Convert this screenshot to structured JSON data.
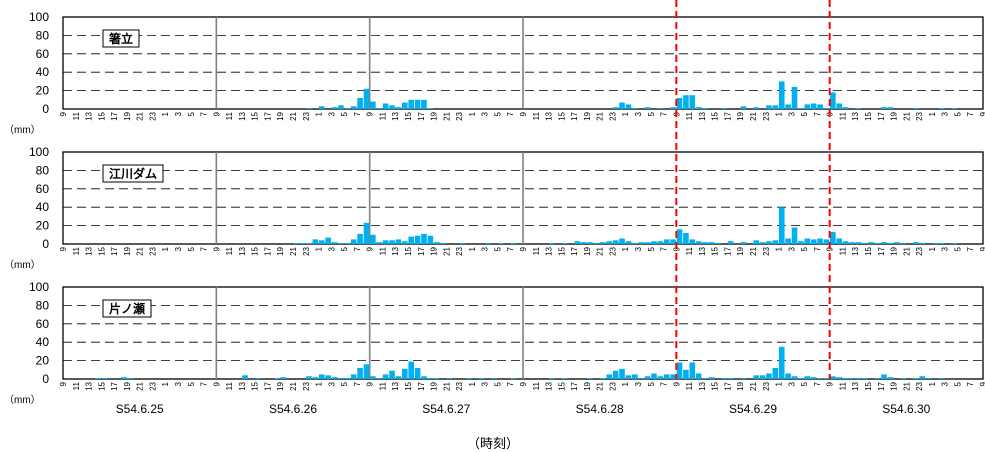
{
  "chart_data": {
    "type": "bar",
    "x_title": "（時刻）",
    "unit_label": "（mm）",
    "hour_label_step": 2,
    "hour_labels_cycle": [
      "9",
      "11",
      "13",
      "15",
      "17",
      "19",
      "21",
      "23",
      "1",
      "3",
      "5",
      "7"
    ],
    "ylim": [
      0,
      100
    ],
    "yticks": [
      0,
      20,
      40,
      60,
      80,
      100
    ],
    "grid_dashed_at": [
      20,
      40,
      60,
      80
    ],
    "day_labels": [
      "S54.6.25",
      "S54.6.26",
      "S54.6.27",
      "S54.6.28",
      "S54.6.29",
      "S54.6.30"
    ],
    "day_separator_hours": [
      24,
      48,
      72
    ],
    "red_dashed_hours": [
      96,
      120
    ],
    "bar_color": "#00b0f0",
    "separator_color": "#808080",
    "red_line_color": "#ff0000",
    "panels": [
      {
        "name": "箸立",
        "bars": [
          {
            "h": 38,
            "v": 1
          },
          {
            "h": 40,
            "v": 3
          },
          {
            "h": 42,
            "v": 2
          },
          {
            "h": 43,
            "v": 4
          },
          {
            "h": 44,
            "v": 1
          },
          {
            "h": 45,
            "v": 3
          },
          {
            "h": 46,
            "v": 12
          },
          {
            "h": 47,
            "v": 22
          },
          {
            "h": 48,
            "v": 8
          },
          {
            "h": 49,
            "v": 1
          },
          {
            "h": 50,
            "v": 6
          },
          {
            "h": 51,
            "v": 4
          },
          {
            "h": 52,
            "v": 2
          },
          {
            "h": 53,
            "v": 7
          },
          {
            "h": 54,
            "v": 10
          },
          {
            "h": 55,
            "v": 10
          },
          {
            "h": 56,
            "v": 10
          },
          {
            "h": 57,
            "v": 1
          },
          {
            "h": 86,
            "v": 2
          },
          {
            "h": 87,
            "v": 7
          },
          {
            "h": 88,
            "v": 5
          },
          {
            "h": 89,
            "v": 1
          },
          {
            "h": 91,
            "v": 2
          },
          {
            "h": 93,
            "v": 1
          },
          {
            "h": 95,
            "v": 2
          },
          {
            "h": 96,
            "v": 12
          },
          {
            "h": 97,
            "v": 15
          },
          {
            "h": 98,
            "v": 15
          },
          {
            "h": 99,
            "v": 2
          },
          {
            "h": 100,
            "v": 1
          },
          {
            "h": 103,
            "v": 1
          },
          {
            "h": 106,
            "v": 3
          },
          {
            "h": 108,
            "v": 2
          },
          {
            "h": 110,
            "v": 4
          },
          {
            "h": 111,
            "v": 4
          },
          {
            "h": 112,
            "v": 30
          },
          {
            "h": 113,
            "v": 5
          },
          {
            "h": 114,
            "v": 24
          },
          {
            "h": 115,
            "v": 1
          },
          {
            "h": 116,
            "v": 5
          },
          {
            "h": 117,
            "v": 6
          },
          {
            "h": 118,
            "v": 5
          },
          {
            "h": 119,
            "v": 1
          },
          {
            "h": 120,
            "v": 18
          },
          {
            "h": 121,
            "v": 6
          },
          {
            "h": 122,
            "v": 2
          },
          {
            "h": 124,
            "v": 1
          },
          {
            "h": 128,
            "v": 2
          },
          {
            "h": 129,
            "v": 2
          },
          {
            "h": 133,
            "v": 1
          },
          {
            "h": 137,
            "v": 1
          },
          {
            "h": 139,
            "v": 1
          }
        ]
      },
      {
        "name": "江川ダム",
        "bars": [
          {
            "h": 36,
            "v": 1
          },
          {
            "h": 37,
            "v": 1
          },
          {
            "h": 38,
            "v": 1
          },
          {
            "h": 39,
            "v": 5
          },
          {
            "h": 40,
            "v": 4
          },
          {
            "h": 41,
            "v": 7
          },
          {
            "h": 42,
            "v": 2
          },
          {
            "h": 43,
            "v": 1
          },
          {
            "h": 44,
            "v": 1
          },
          {
            "h": 45,
            "v": 5
          },
          {
            "h": 46,
            "v": 11
          },
          {
            "h": 47,
            "v": 23
          },
          {
            "h": 48,
            "v": 10
          },
          {
            "h": 49,
            "v": 2
          },
          {
            "h": 50,
            "v": 4
          },
          {
            "h": 51,
            "v": 4
          },
          {
            "h": 52,
            "v": 5
          },
          {
            "h": 53,
            "v": 3
          },
          {
            "h": 54,
            "v": 8
          },
          {
            "h": 55,
            "v": 9
          },
          {
            "h": 56,
            "v": 11
          },
          {
            "h": 57,
            "v": 9
          },
          {
            "h": 58,
            "v": 2
          },
          {
            "h": 59,
            "v": 1
          },
          {
            "h": 62,
            "v": 1
          },
          {
            "h": 66,
            "v": 1
          },
          {
            "h": 68,
            "v": 1
          },
          {
            "h": 70,
            "v": 1
          },
          {
            "h": 76,
            "v": 1
          },
          {
            "h": 78,
            "v": 1
          },
          {
            "h": 80,
            "v": 3
          },
          {
            "h": 81,
            "v": 2
          },
          {
            "h": 82,
            "v": 2
          },
          {
            "h": 83,
            "v": 1
          },
          {
            "h": 84,
            "v": 2
          },
          {
            "h": 85,
            "v": 3
          },
          {
            "h": 86,
            "v": 4
          },
          {
            "h": 87,
            "v": 6
          },
          {
            "h": 88,
            "v": 3
          },
          {
            "h": 89,
            "v": 1
          },
          {
            "h": 90,
            "v": 2
          },
          {
            "h": 91,
            "v": 2
          },
          {
            "h": 92,
            "v": 3
          },
          {
            "h": 93,
            "v": 3
          },
          {
            "h": 94,
            "v": 5
          },
          {
            "h": 95,
            "v": 5
          },
          {
            "h": 96,
            "v": 16
          },
          {
            "h": 97,
            "v": 12
          },
          {
            "h": 98,
            "v": 5
          },
          {
            "h": 99,
            "v": 3
          },
          {
            "h": 100,
            "v": 2
          },
          {
            "h": 101,
            "v": 2
          },
          {
            "h": 102,
            "v": 1
          },
          {
            "h": 104,
            "v": 3
          },
          {
            "h": 106,
            "v": 2
          },
          {
            "h": 108,
            "v": 4
          },
          {
            "h": 109,
            "v": 2
          },
          {
            "h": 110,
            "v": 3
          },
          {
            "h": 111,
            "v": 4
          },
          {
            "h": 112,
            "v": 40
          },
          {
            "h": 113,
            "v": 6
          },
          {
            "h": 114,
            "v": 18
          },
          {
            "h": 115,
            "v": 3
          },
          {
            "h": 116,
            "v": 6
          },
          {
            "h": 117,
            "v": 5
          },
          {
            "h": 118,
            "v": 6
          },
          {
            "h": 119,
            "v": 5
          },
          {
            "h": 120,
            "v": 13
          },
          {
            "h": 121,
            "v": 6
          },
          {
            "h": 122,
            "v": 3
          },
          {
            "h": 123,
            "v": 2
          },
          {
            "h": 124,
            "v": 2
          },
          {
            "h": 125,
            "v": 1
          },
          {
            "h": 126,
            "v": 2
          },
          {
            "h": 127,
            "v": 1
          },
          {
            "h": 128,
            "v": 2
          },
          {
            "h": 129,
            "v": 1
          },
          {
            "h": 130,
            "v": 2
          },
          {
            "h": 131,
            "v": 1
          },
          {
            "h": 133,
            "v": 2
          },
          {
            "h": 134,
            "v": 1
          },
          {
            "h": 136,
            "v": 1
          },
          {
            "h": 137,
            "v": 1
          },
          {
            "h": 139,
            "v": 1
          }
        ]
      },
      {
        "name": "片ノ瀬",
        "bars": [
          {
            "h": 5,
            "v": 1
          },
          {
            "h": 6,
            "v": 1
          },
          {
            "h": 9,
            "v": 2
          },
          {
            "h": 10,
            "v": 1
          },
          {
            "h": 28,
            "v": 4
          },
          {
            "h": 30,
            "v": 1
          },
          {
            "h": 33,
            "v": 1
          },
          {
            "h": 34,
            "v": 2
          },
          {
            "h": 38,
            "v": 3
          },
          {
            "h": 39,
            "v": 2
          },
          {
            "h": 40,
            "v": 5
          },
          {
            "h": 41,
            "v": 4
          },
          {
            "h": 42,
            "v": 2
          },
          {
            "h": 43,
            "v": 1
          },
          {
            "h": 44,
            "v": 1
          },
          {
            "h": 45,
            "v": 5
          },
          {
            "h": 46,
            "v": 12
          },
          {
            "h": 47,
            "v": 16
          },
          {
            "h": 48,
            "v": 3
          },
          {
            "h": 49,
            "v": 1
          },
          {
            "h": 50,
            "v": 5
          },
          {
            "h": 51,
            "v": 9
          },
          {
            "h": 52,
            "v": 3
          },
          {
            "h": 53,
            "v": 11
          },
          {
            "h": 54,
            "v": 19
          },
          {
            "h": 55,
            "v": 12
          },
          {
            "h": 56,
            "v": 3
          },
          {
            "h": 57,
            "v": 1
          },
          {
            "h": 58,
            "v": 1
          },
          {
            "h": 60,
            "v": 1
          },
          {
            "h": 63,
            "v": 1
          },
          {
            "h": 65,
            "v": 1
          },
          {
            "h": 67,
            "v": 1
          },
          {
            "h": 70,
            "v": 1
          },
          {
            "h": 76,
            "v": 1
          },
          {
            "h": 78,
            "v": 1
          },
          {
            "h": 82,
            "v": 1
          },
          {
            "h": 84,
            "v": 1
          },
          {
            "h": 85,
            "v": 5
          },
          {
            "h": 86,
            "v": 9
          },
          {
            "h": 87,
            "v": 11
          },
          {
            "h": 88,
            "v": 4
          },
          {
            "h": 89,
            "v": 5
          },
          {
            "h": 90,
            "v": 1
          },
          {
            "h": 91,
            "v": 3
          },
          {
            "h": 92,
            "v": 6
          },
          {
            "h": 93,
            "v": 3
          },
          {
            "h": 94,
            "v": 5
          },
          {
            "h": 95,
            "v": 5
          },
          {
            "h": 96,
            "v": 18
          },
          {
            "h": 97,
            "v": 10
          },
          {
            "h": 98,
            "v": 18
          },
          {
            "h": 99,
            "v": 6
          },
          {
            "h": 100,
            "v": 1
          },
          {
            "h": 101,
            "v": 2
          },
          {
            "h": 103,
            "v": 1
          },
          {
            "h": 104,
            "v": 1
          },
          {
            "h": 106,
            "v": 1
          },
          {
            "h": 108,
            "v": 4
          },
          {
            "h": 109,
            "v": 4
          },
          {
            "h": 110,
            "v": 6
          },
          {
            "h": 111,
            "v": 12
          },
          {
            "h": 112,
            "v": 35
          },
          {
            "h": 113,
            "v": 6
          },
          {
            "h": 114,
            "v": 3
          },
          {
            "h": 115,
            "v": 1
          },
          {
            "h": 116,
            "v": 3
          },
          {
            "h": 117,
            "v": 2
          },
          {
            "h": 118,
            "v": 1
          },
          {
            "h": 119,
            "v": 1
          },
          {
            "h": 120,
            "v": 3
          },
          {
            "h": 121,
            "v": 2
          },
          {
            "h": 122,
            "v": 1
          },
          {
            "h": 123,
            "v": 1
          },
          {
            "h": 124,
            "v": 1
          },
          {
            "h": 125,
            "v": 1
          },
          {
            "h": 127,
            "v": 1
          },
          {
            "h": 128,
            "v": 5
          },
          {
            "h": 129,
            "v": 2
          },
          {
            "h": 131,
            "v": 1
          },
          {
            "h": 133,
            "v": 1
          },
          {
            "h": 134,
            "v": 3
          },
          {
            "h": 135,
            "v": 1
          },
          {
            "h": 137,
            "v": 1
          }
        ]
      }
    ]
  }
}
